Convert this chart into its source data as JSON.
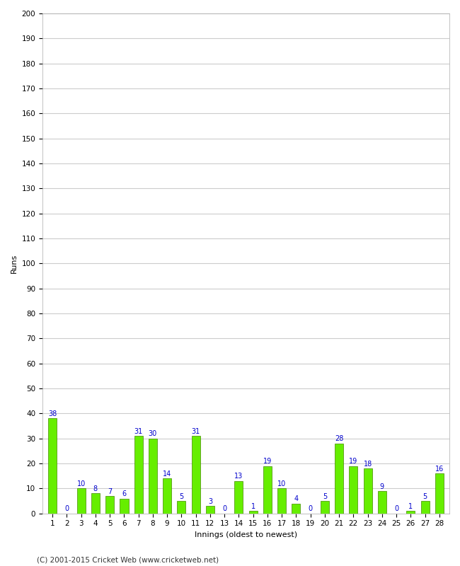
{
  "innings": [
    1,
    2,
    3,
    4,
    5,
    6,
    7,
    8,
    9,
    10,
    11,
    12,
    13,
    14,
    15,
    16,
    17,
    18,
    19,
    20,
    21,
    22,
    23,
    24,
    25,
    26,
    27,
    28
  ],
  "runs": [
    38,
    0,
    10,
    8,
    7,
    6,
    31,
    30,
    14,
    5,
    31,
    3,
    0,
    13,
    1,
    19,
    10,
    4,
    0,
    5,
    28,
    19,
    18,
    9,
    0,
    1,
    5,
    16
  ],
  "bar_color": "#66ee00",
  "bar_edge_color": "#448800",
  "label_color": "#0000cc",
  "xlabel": "Innings (oldest to newest)",
  "ylabel": "Runs",
  "ylim": [
    0,
    200
  ],
  "ytick_step": 10,
  "bg_color": "#ffffff",
  "grid_color": "#cccccc",
  "footer": "(C) 2001-2015 Cricket Web (www.cricketweb.net)",
  "label_fontsize": 7,
  "axis_label_fontsize": 8,
  "tick_fontsize": 7.5,
  "bar_width": 0.6
}
